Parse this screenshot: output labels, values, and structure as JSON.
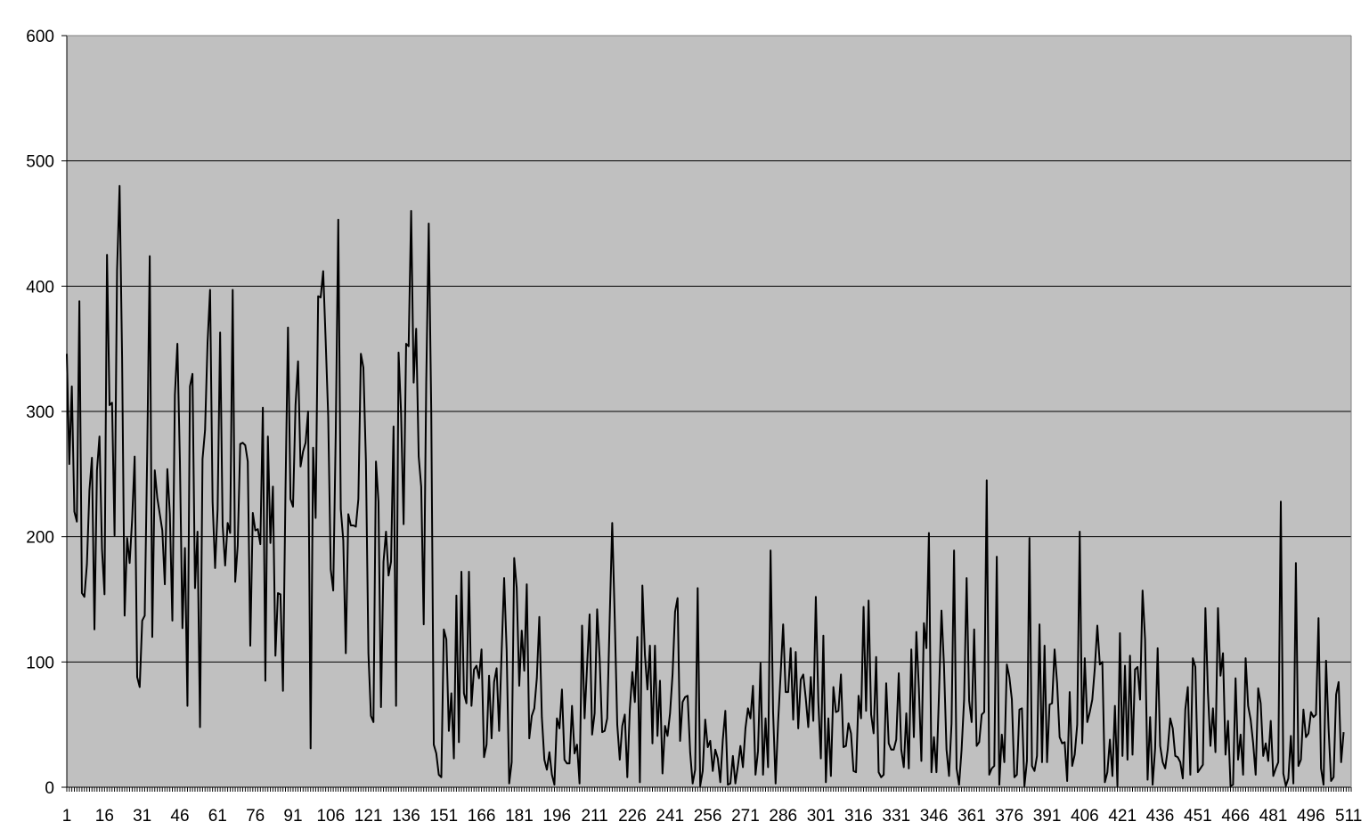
{
  "chart_data": {
    "type": "line",
    "title": "",
    "xlabel": "",
    "ylabel": "",
    "ylim": [
      0,
      600
    ],
    "yticks": [
      0,
      100,
      200,
      300,
      400,
      500,
      600
    ],
    "xlim": [
      1,
      512
    ],
    "xticks": [
      1,
      16,
      31,
      46,
      61,
      76,
      91,
      106,
      121,
      136,
      151,
      166,
      181,
      196,
      211,
      226,
      241,
      256,
      271,
      286,
      301,
      316,
      331,
      346,
      361,
      376,
      391,
      406,
      421,
      436,
      451,
      466,
      481,
      496,
      511
    ],
    "grid": "horizontal",
    "legend": "none",
    "colors": {
      "plot_background": "#c0c0c0",
      "line": "#000000",
      "grid": "#000000"
    },
    "series_anchors_note": "",
    "series": [
      {
        "x_start": 1,
        "values": [
          346,
          258,
          320,
          220,
          212,
          388,
          155,
          152,
          178,
          237,
          263,
          126,
          253,
          280,
          190,
          154,
          425,
          305,
          307,
          201,
          413,
          480,
          343,
          137,
          199,
          179,
          214,
          264,
          88,
          80,
          133,
          137,
          268,
          424,
          120,
          253,
          231,
          218,
          205,
          162,
          254,
          218,
          133,
          313,
          354,
          260,
          127,
          191,
          65,
          320,
          330,
          159,
          204,
          48,
          262,
          285,
          355,
          397,
          228,
          175,
          222,
          363,
          209,
          177,
          211,
          203,
          397,
          164,
          193,
          274,
          275,
          273,
          260,
          113,
          219,
          205,
          206,
          194,
          303,
          85,
          280,
          195,
          240,
          105,
          155,
          154,
          77,
          236,
          367,
          230,
          224,
          305,
          340,
          256,
          268,
          275,
          300,
          31,
          271,
          215,
          392,
          391,
          412,
          356,
          296,
          174,
          157,
          283,
          453,
          222,
          197,
          107,
          218,
          209,
          209,
          208,
          230,
          346,
          335,
          261,
          107,
          57,
          52,
          260,
          228,
          64,
          180,
          204,
          169,
          180,
          288,
          65,
          347,
          298,
          210,
          354,
          352,
          460,
          323,
          366,
          264,
          240,
          130,
          323,
          450,
          300,
          34,
          27,
          10,
          8,
          126,
          118,
          45,
          75,
          23,
          153,
          36,
          172,
          75,
          67,
          172,
          65,
          94,
          97,
          87,
          110,
          24,
          34,
          89,
          39,
          84,
          95,
          45,
          108,
          167,
          109,
          3,
          20,
          183,
          159,
          81,
          125,
          93,
          162,
          39,
          57,
          63,
          87,
          136,
          56,
          22,
          14,
          28,
          10,
          2,
          55,
          47,
          78,
          22,
          19,
          19,
          65,
          27,
          34,
          3,
          129,
          55,
          97,
          138,
          42,
          59,
          142,
          103,
          44,
          45,
          55,
          135,
          211,
          135,
          50,
          22,
          49,
          58,
          8,
          62,
          92,
          68,
          120,
          4,
          161,
          106,
          78,
          113,
          35,
          113,
          41,
          85,
          11,
          49,
          41,
          59,
          90,
          140,
          151,
          37,
          68,
          72,
          73,
          28,
          3,
          14,
          159,
          1,
          13,
          54,
          32,
          37,
          13,
          30,
          23,
          4,
          38,
          61,
          2,
          3,
          25,
          3,
          17,
          33,
          16,
          47,
          63,
          55,
          81,
          10,
          29,
          99,
          10,
          55,
          16,
          189,
          60,
          3,
          52,
          90,
          130,
          76,
          76,
          111,
          54,
          108,
          47,
          86,
          90,
          71,
          48,
          88,
          53,
          152,
          68,
          23,
          121,
          4,
          55,
          9,
          80,
          60,
          61,
          90,
          32,
          33,
          51,
          43,
          13,
          12,
          73,
          55,
          144,
          61,
          149,
          58,
          43,
          104,
          12,
          8,
          10,
          83,
          35,
          30,
          30,
          38,
          91,
          30,
          16,
          59,
          15,
          110,
          40,
          124,
          79,
          21,
          131,
          111,
          203,
          12,
          40,
          12,
          74,
          141,
          97,
          30,
          9,
          51,
          189,
          15,
          2,
          30,
          70,
          167,
          69,
          52,
          126,
          33,
          36,
          58,
          60,
          245,
          10,
          15,
          17,
          184,
          2,
          42,
          20,
          98,
          88,
          70,
          8,
          10,
          62,
          63,
          1,
          21,
          199,
          17,
          13,
          25,
          130,
          20,
          113,
          20,
          66,
          67,
          110,
          83,
          40,
          35,
          36,
          5,
          76,
          17,
          26,
          50,
          204,
          35,
          103,
          52,
          60,
          70,
          95,
          129,
          98,
          100,
          4,
          12,
          38,
          9,
          65,
          1,
          123,
          25,
          97,
          22,
          105,
          26,
          94,
          96,
          70,
          157,
          118,
          6,
          56,
          2,
          31,
          111,
          33,
          20,
          15,
          30,
          55,
          47,
          25,
          24,
          20,
          7,
          62,
          80,
          10,
          103,
          96,
          12,
          15,
          18,
          143,
          76,
          33,
          63,
          28,
          143,
          89,
          107,
          26,
          53,
          1,
          2,
          87,
          22,
          42,
          10,
          103,
          65,
          54,
          35,
          10,
          79,
          67,
          25,
          35,
          21,
          53,
          9,
          15,
          20,
          228,
          11,
          1,
          7,
          41,
          3,
          179,
          17,
          22,
          62,
          40,
          43,
          60,
          56,
          58,
          135,
          15,
          2,
          101,
          47,
          5,
          8,
          74,
          84,
          20,
          44
        ]
      }
    ]
  }
}
